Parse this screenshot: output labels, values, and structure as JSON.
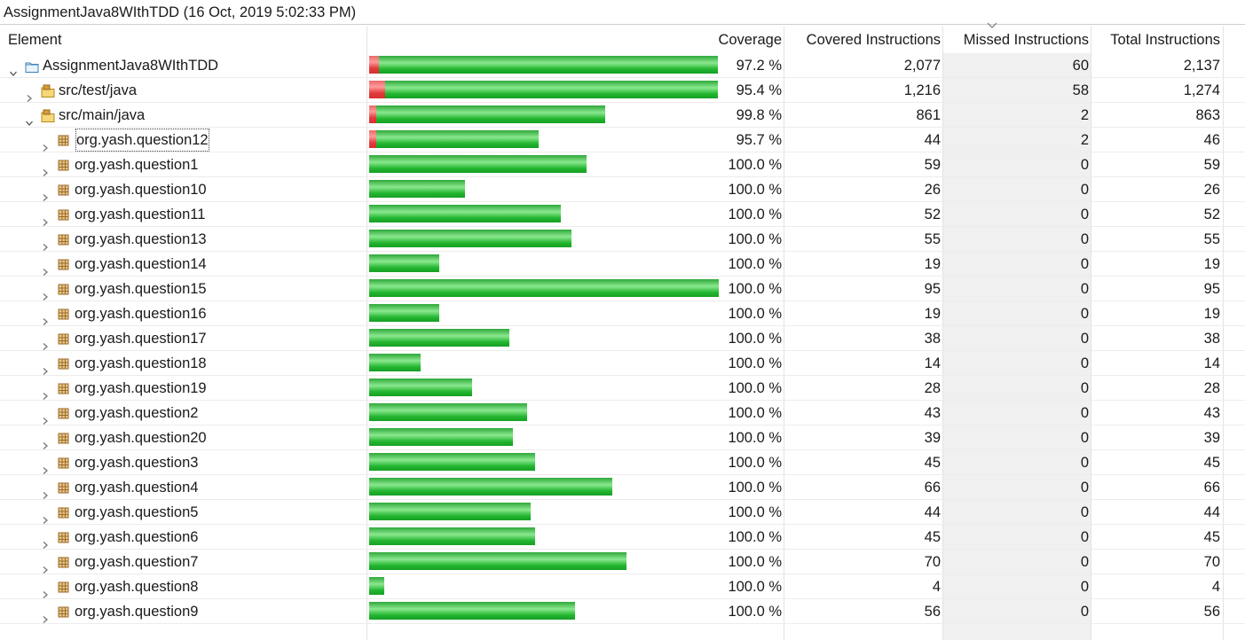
{
  "window_title": "AssignmentJava8WIthTDD (16 Oct, 2019 5:02:33 PM)",
  "columns": {
    "element": "Element",
    "coverage": "Coverage",
    "covered": "Covered Instructions",
    "missed": "Missed Instructions",
    "total": "Total Instructions"
  },
  "sorted_column": "missed",
  "colors": {
    "covered_bar": "#22b52f",
    "missed_bar": "#e23b3b"
  },
  "rows": [
    {
      "name": "AssignmentJava8WIthTDD",
      "icon": "project-icon",
      "level": 0,
      "expanded": true,
      "coverage": "97.2 %",
      "covered": "2,077",
      "missed": "60",
      "total": "2,137",
      "covered_n": 2077,
      "missed_n": 60
    },
    {
      "name": "src/test/java",
      "icon": "source-folder-icon",
      "level": 1,
      "expanded": false,
      "coverage": "95.4 %",
      "covered": "1,216",
      "missed": "58",
      "total": "1,274",
      "covered_n": 1216,
      "missed_n": 58
    },
    {
      "name": "src/main/java",
      "icon": "source-folder-icon",
      "level": 1,
      "expanded": true,
      "coverage": "99.8 %",
      "covered": "861",
      "missed": "2",
      "total": "863",
      "covered_n": 861,
      "missed_n": 2
    },
    {
      "name": "org.yash.question12",
      "icon": "package-icon",
      "level": 2,
      "expanded": false,
      "focused": true,
      "coverage": "95.7 %",
      "covered": "44",
      "missed": "2",
      "total": "46",
      "covered_n": 44,
      "missed_n": 2
    },
    {
      "name": "org.yash.question1",
      "icon": "package-icon",
      "level": 2,
      "expanded": false,
      "coverage": "100.0 %",
      "covered": "59",
      "missed": "0",
      "total": "59",
      "covered_n": 59,
      "missed_n": 0
    },
    {
      "name": "org.yash.question10",
      "icon": "package-icon",
      "level": 2,
      "expanded": false,
      "coverage": "100.0 %",
      "covered": "26",
      "missed": "0",
      "total": "26",
      "covered_n": 26,
      "missed_n": 0
    },
    {
      "name": "org.yash.question11",
      "icon": "package-icon",
      "level": 2,
      "expanded": false,
      "coverage": "100.0 %",
      "covered": "52",
      "missed": "0",
      "total": "52",
      "covered_n": 52,
      "missed_n": 0
    },
    {
      "name": "org.yash.question13",
      "icon": "package-icon",
      "level": 2,
      "expanded": false,
      "coverage": "100.0 %",
      "covered": "55",
      "missed": "0",
      "total": "55",
      "covered_n": 55,
      "missed_n": 0
    },
    {
      "name": "org.yash.question14",
      "icon": "package-icon",
      "level": 2,
      "expanded": false,
      "coverage": "100.0 %",
      "covered": "19",
      "missed": "0",
      "total": "19",
      "covered_n": 19,
      "missed_n": 0
    },
    {
      "name": "org.yash.question15",
      "icon": "package-icon",
      "level": 2,
      "expanded": false,
      "coverage": "100.0 %",
      "covered": "95",
      "missed": "0",
      "total": "95",
      "covered_n": 95,
      "missed_n": 0
    },
    {
      "name": "org.yash.question16",
      "icon": "package-icon",
      "level": 2,
      "expanded": false,
      "coverage": "100.0 %",
      "covered": "19",
      "missed": "0",
      "total": "19",
      "covered_n": 19,
      "missed_n": 0
    },
    {
      "name": "org.yash.question17",
      "icon": "package-icon",
      "level": 2,
      "expanded": false,
      "coverage": "100.0 %",
      "covered": "38",
      "missed": "0",
      "total": "38",
      "covered_n": 38,
      "missed_n": 0
    },
    {
      "name": "org.yash.question18",
      "icon": "package-icon",
      "level": 2,
      "expanded": false,
      "coverage": "100.0 %",
      "covered": "14",
      "missed": "0",
      "total": "14",
      "covered_n": 14,
      "missed_n": 0
    },
    {
      "name": "org.yash.question19",
      "icon": "package-icon",
      "level": 2,
      "expanded": false,
      "coverage": "100.0 %",
      "covered": "28",
      "missed": "0",
      "total": "28",
      "covered_n": 28,
      "missed_n": 0
    },
    {
      "name": "org.yash.question2",
      "icon": "package-icon",
      "level": 2,
      "expanded": false,
      "coverage": "100.0 %",
      "covered": "43",
      "missed": "0",
      "total": "43",
      "covered_n": 43,
      "missed_n": 0
    },
    {
      "name": "org.yash.question20",
      "icon": "package-icon",
      "level": 2,
      "expanded": false,
      "coverage": "100.0 %",
      "covered": "39",
      "missed": "0",
      "total": "39",
      "covered_n": 39,
      "missed_n": 0
    },
    {
      "name": "org.yash.question3",
      "icon": "package-icon",
      "level": 2,
      "expanded": false,
      "coverage": "100.0 %",
      "covered": "45",
      "missed": "0",
      "total": "45",
      "covered_n": 45,
      "missed_n": 0
    },
    {
      "name": "org.yash.question4",
      "icon": "package-icon",
      "level": 2,
      "expanded": false,
      "coverage": "100.0 %",
      "covered": "66",
      "missed": "0",
      "total": "66",
      "covered_n": 66,
      "missed_n": 0
    },
    {
      "name": "org.yash.question5",
      "icon": "package-icon",
      "level": 2,
      "expanded": false,
      "coverage": "100.0 %",
      "covered": "44",
      "missed": "0",
      "total": "44",
      "covered_n": 44,
      "missed_n": 0
    },
    {
      "name": "org.yash.question6",
      "icon": "package-icon",
      "level": 2,
      "expanded": false,
      "coverage": "100.0 %",
      "covered": "45",
      "missed": "0",
      "total": "45",
      "covered_n": 45,
      "missed_n": 0
    },
    {
      "name": "org.yash.question7",
      "icon": "package-icon",
      "level": 2,
      "expanded": false,
      "coverage": "100.0 %",
      "covered": "70",
      "missed": "0",
      "total": "70",
      "covered_n": 70,
      "missed_n": 0
    },
    {
      "name": "org.yash.question8",
      "icon": "package-icon",
      "level": 2,
      "expanded": false,
      "coverage": "100.0 %",
      "covered": "4",
      "missed": "0",
      "total": "4",
      "covered_n": 4,
      "missed_n": 0
    },
    {
      "name": "org.yash.question9",
      "icon": "package-icon",
      "level": 2,
      "expanded": false,
      "coverage": "100.0 %",
      "covered": "56",
      "missed": "0",
      "total": "56",
      "covered_n": 56,
      "missed_n": 0
    }
  ]
}
